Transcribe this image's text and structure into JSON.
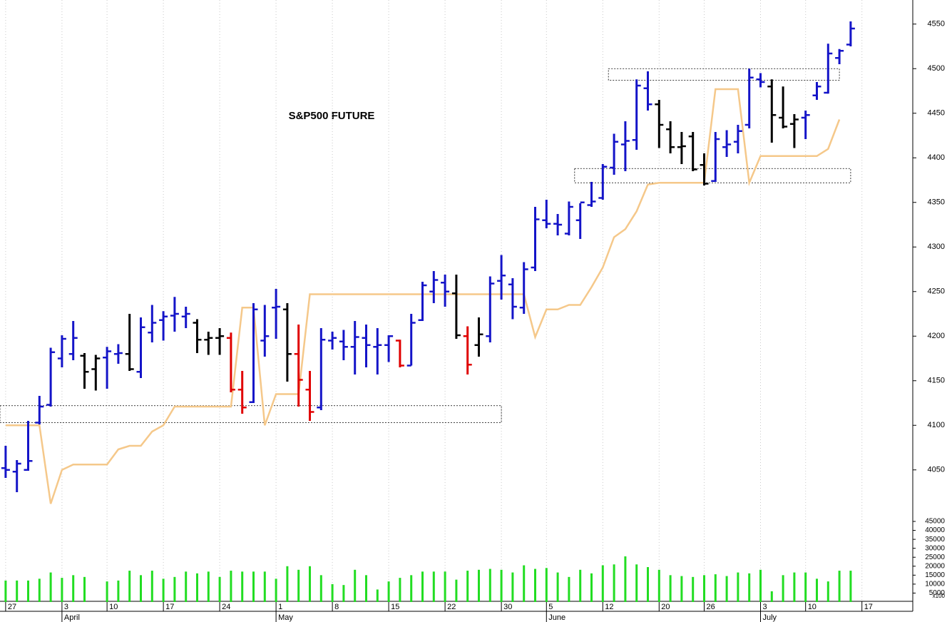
{
  "chart_data": [
    {
      "type": "ohlc",
      "title": "S&P500 FUTURE",
      "categories": [
        "27",
        null,
        null,
        null,
        null,
        "3",
        null,
        null,
        null,
        "10",
        null,
        null,
        null,
        null,
        "17",
        null,
        null,
        null,
        null,
        "24",
        null,
        null,
        null,
        null,
        "1",
        null,
        null,
        null,
        null,
        "8",
        null,
        null,
        null,
        null,
        "15",
        null,
        null,
        null,
        null,
        "22",
        null,
        null,
        null,
        null,
        "30",
        null,
        null,
        null,
        "5",
        null,
        null,
        null,
        null,
        "12",
        null,
        null,
        null,
        null,
        "20",
        null,
        null,
        null,
        "26",
        null,
        null,
        null,
        null,
        "3",
        null,
        null,
        null,
        "10",
        null,
        null,
        null,
        null,
        "17"
      ],
      "months": [
        "April",
        "May",
        "June",
        "July"
      ],
      "open": [
        4052,
        4048,
        4050,
        4103,
        4123,
        4175,
        4180,
        4178,
        4163,
        4176,
        4180,
        4180,
        4160,
        4204,
        4218,
        4223,
        4222,
        4215,
        4196,
        4198,
        4198,
        4140,
        4126,
        4195,
        4232,
        4230,
        4180,
        4140,
        4120,
        4195,
        4194,
        4188,
        4198,
        4188,
        4190,
        4195,
        4167,
        4218,
        4250,
        4260,
        4248,
        4200,
        4190,
        4200,
        4262,
        4258,
        4232,
        4277,
        4330,
        4326,
        4315,
        4330,
        4347,
        4355,
        4389,
        4415,
        4420,
        4478,
        4460,
        4432,
        4412,
        4424,
        4392,
        4374,
        4412,
        4418,
        4437,
        4488,
        4480,
        4445,
        4438,
        4445,
        4470,
        4473,
        4512,
        4527,
        null
      ],
      "high": [
        4077,
        4061,
        4105,
        4133,
        4187,
        4201,
        4217,
        4181,
        4179,
        4188,
        4191,
        4225,
        4221,
        4235,
        4228,
        4244,
        4233,
        4219,
        4205,
        4209,
        4204,
        4161,
        4237,
        4235,
        4253,
        4237,
        4213,
        4161,
        4209,
        4205,
        4207,
        4217,
        4213,
        4209,
        4201,
        4196,
        4225,
        4261,
        4273,
        4269,
        4269,
        4211,
        4221,
        4267,
        4291,
        4265,
        4283,
        4345,
        4353,
        4337,
        4351,
        4349,
        4373,
        4393,
        4427,
        4441,
        4488,
        4497,
        4465,
        4441,
        4429,
        4429,
        4405,
        4429,
        4431,
        4437,
        4500,
        4495,
        4488,
        4480,
        4449,
        4453,
        4485,
        4528,
        4522,
        4553,
        null
      ],
      "low": [
        4041,
        4025,
        4049,
        4101,
        4121,
        4165,
        4173,
        4141,
        4139,
        4141,
        4169,
        4161,
        4153,
        4193,
        4195,
        4205,
        4209,
        4181,
        4179,
        4179,
        4137,
        4113,
        4125,
        4177,
        4197,
        4149,
        4121,
        4105,
        4117,
        4185,
        4173,
        4157,
        4165,
        4157,
        4171,
        4165,
        4167,
        4217,
        4237,
        4233,
        4197,
        4157,
        4177,
        4193,
        4241,
        4219,
        4225,
        4273,
        4321,
        4313,
        4313,
        4309,
        4345,
        4353,
        4381,
        4385,
        4409,
        4453,
        4411,
        4405,
        4393,
        4385,
        4369,
        4373,
        4401,
        4405,
        4433,
        4479,
        4417,
        4433,
        4411,
        4421,
        4465,
        4472,
        4505,
        4525,
        null
      ],
      "close": [
        4050,
        4057,
        4060,
        4121,
        4182,
        4197,
        4198,
        4160,
        4175,
        4183,
        4181,
        4163,
        4210,
        4215,
        4222,
        4225,
        4225,
        4196,
        4198,
        4200,
        4140,
        4120,
        4230,
        4200,
        4233,
        4180,
        4151,
        4115,
        4196,
        4198,
        4188,
        4199,
        4190,
        4190,
        4200,
        4167,
        4215,
        4257,
        4263,
        4250,
        4201,
        4168,
        4202,
        4259,
        4268,
        4233,
        4275,
        4331,
        4326,
        4325,
        4345,
        4350,
        4351,
        4390,
        4418,
        4419,
        4481,
        4460,
        4437,
        4412,
        4413,
        4387,
        4371,
        4421,
        4415,
        4430,
        4490,
        4485,
        4448,
        4435,
        4443,
        4448,
        4480,
        4517,
        4520,
        4545,
        null
      ],
      "bar_colors": [
        "#1414c8",
        "#1414c8",
        "#1414c8",
        "#1414c8",
        "#1414c8",
        "#1414c8",
        "#1414c8",
        "#000000",
        "#000000",
        "#1414c8",
        "#1414c8",
        "#000000",
        "#1414c8",
        "#1414c8",
        "#1414c8",
        "#1414c8",
        "#1414c8",
        "#000000",
        "#000000",
        "#000000",
        "#e00000",
        "#e00000",
        "#1414c8",
        "#1414c8",
        "#1414c8",
        "#000000",
        "#e00000",
        "#e00000",
        "#1414c8",
        "#1414c8",
        "#1414c8",
        "#1414c8",
        "#1414c8",
        "#1414c8",
        "#1414c8",
        "#e00000",
        "#1414c8",
        "#1414c8",
        "#1414c8",
        "#1414c8",
        "#000000",
        "#e00000",
        "#000000",
        "#1414c8",
        "#1414c8",
        "#1414c8",
        "#1414c8",
        "#1414c8",
        "#1414c8",
        "#1414c8",
        "#1414c8",
        "#1414c8",
        "#1414c8",
        "#1414c8",
        "#1414c8",
        "#1414c8",
        "#1414c8",
        "#1414c8",
        "#000000",
        "#000000",
        "#000000",
        "#000000",
        "#000000",
        "#1414c8",
        "#1414c8",
        "#1414c8",
        "#1414c8",
        "#1414c8",
        "#000000",
        "#000000",
        "#000000",
        "#1414c8",
        "#1414c8",
        "#1414c8",
        "#1414c8",
        "#1414c8",
        null
      ],
      "line": {
        "color": "#f5c88a",
        "values": [
          4100,
          4100,
          4100,
          4100,
          4012,
          4050,
          4056,
          4056,
          4056,
          4056,
          4073,
          4077,
          4077,
          4093,
          4100,
          4121,
          4121,
          4121,
          4121,
          4121,
          4121,
          4232,
          4232,
          4100,
          4135,
          4135,
          4135,
          4247,
          4247,
          4247,
          4247,
          4247,
          4247,
          4247,
          4247,
          4247,
          4247,
          4247,
          4247,
          4247,
          4247,
          4247,
          4247,
          4247,
          4247,
          4247,
          4247,
          4199,
          4230,
          4230,
          4235,
          4235,
          4255,
          4277,
          4311,
          4320,
          4340,
          4370,
          4372,
          4372,
          4372,
          4372,
          4372,
          4477,
          4477,
          4477,
          4372,
          4402,
          4402,
          4402,
          4402,
          4402,
          4402,
          4410,
          4443,
          null,
          null
        ]
      },
      "zones": [
        {
          "low": 4103,
          "high": 4122,
          "start": 0,
          "end": 44
        },
        {
          "low": 4487,
          "high": 4500,
          "start": 54,
          "end": 74
        },
        {
          "low": 4372,
          "high": 4388,
          "start": 51,
          "end": 75
        }
      ],
      "ylim": [
        4009,
        4577
      ],
      "yticks": [
        4050,
        4100,
        4150,
        4200,
        4250,
        4300,
        4350,
        4400,
        4450,
        4500,
        4550
      ],
      "grid": true
    },
    {
      "type": "bar",
      "color": "#22dd22",
      "unit_label": "x100",
      "values": [
        12000,
        12000,
        12000,
        13000,
        16500,
        13500,
        15000,
        14000,
        0,
        11500,
        12000,
        17500,
        15000,
        17500,
        13000,
        14000,
        17000,
        16000,
        17000,
        14000,
        17500,
        17000,
        17000,
        17000,
        13000,
        20000,
        18000,
        20000,
        15000,
        10000,
        9500,
        18000,
        15000,
        7000,
        11500,
        13500,
        15000,
        17000,
        17000,
        17000,
        12500,
        17500,
        18000,
        18500,
        18000,
        16500,
        20500,
        18500,
        19000,
        16500,
        14000,
        18000,
        16000,
        20500,
        21000,
        25500,
        21000,
        19500,
        18000,
        15000,
        14500,
        14000,
        15000,
        15500,
        14500,
        16500,
        16000,
        18000,
        6000,
        15000,
        16500,
        16500,
        13000,
        11500,
        17500,
        17500,
        null
      ],
      "ylim": [
        0,
        45000
      ],
      "yticks": [
        5000,
        10000,
        15000,
        20000,
        25000,
        30000,
        35000,
        40000,
        45000
      ]
    }
  ]
}
